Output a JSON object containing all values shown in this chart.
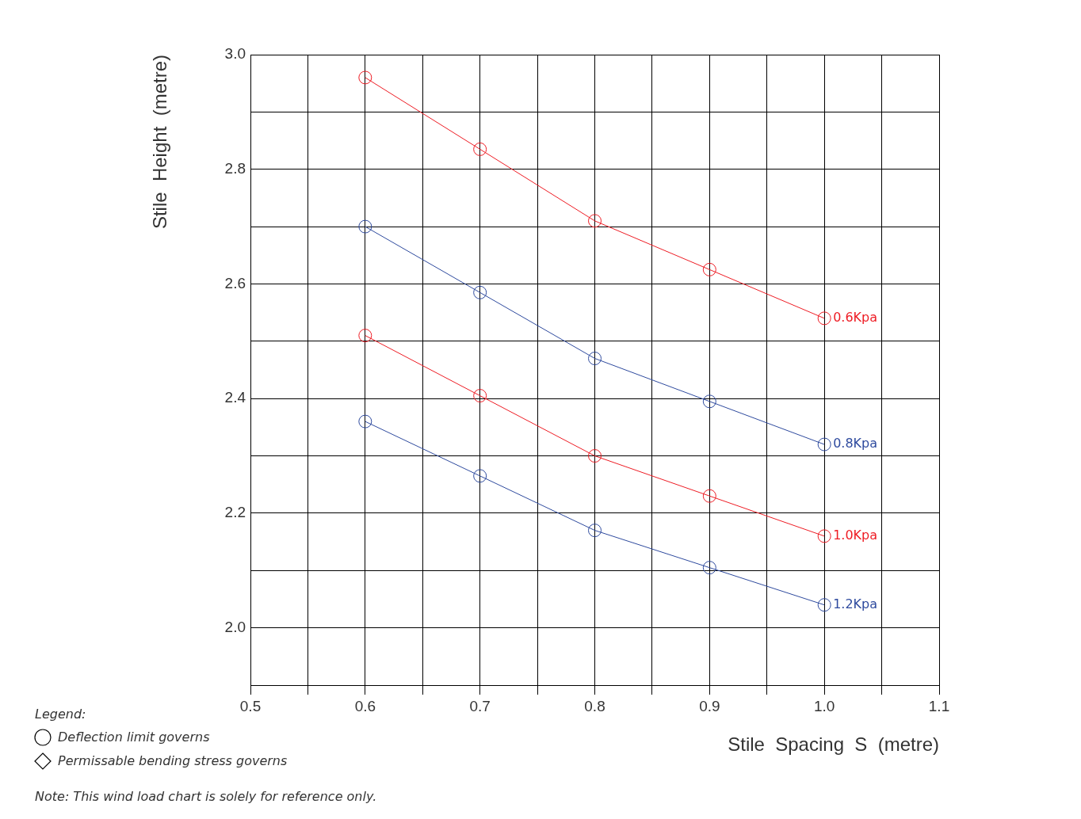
{
  "chart_data": {
    "type": "line",
    "xlabel": "Stile  Spacing  S  (metre)",
    "ylabel": "Stile  Height  (metre)",
    "x": [
      0.6,
      0.7,
      0.8,
      0.9,
      1.0
    ],
    "series": [
      {
        "name": "0.6Kpa",
        "color": "#ee1c24",
        "values": [
          2.96,
          2.835,
          2.71,
          2.625,
          2.54
        ]
      },
      {
        "name": "0.8Kpa",
        "color": "#2e4a9e",
        "values": [
          2.7,
          2.585,
          2.47,
          2.395,
          2.32
        ]
      },
      {
        "name": "1.0Kpa",
        "color": "#ee1c24",
        "values": [
          2.51,
          2.405,
          2.3,
          2.23,
          2.16
        ]
      },
      {
        "name": "1.2Kpa",
        "color": "#2e4a9e",
        "values": [
          2.36,
          2.265,
          2.17,
          2.105,
          2.04
        ]
      }
    ],
    "xlim": [
      0.5,
      1.1
    ],
    "xticks": [
      0.5,
      {
        "value": 0.55,
        "label": null
      },
      0.6,
      {
        "value": 0.65,
        "label": null
      },
      0.7,
      {
        "value": 0.75,
        "label": null
      },
      0.8,
      {
        "value": 0.85,
        "label": null
      },
      0.9,
      {
        "value": 0.95,
        "label": null
      },
      {
        "value": 1.0,
        "label": "1.0"
      },
      {
        "value": 1.05,
        "label": null
      },
      1.1
    ],
    "ylim": [
      1.9,
      3.0
    ],
    "yticks": [
      {
        "value": 1.9,
        "label": null
      },
      {
        "value": 2.0,
        "label": "2.0"
      },
      {
        "value": 2.1,
        "label": null
      },
      2.2,
      {
        "value": 2.3,
        "label": null
      },
      2.4,
      {
        "value": 2.5,
        "label": null
      },
      2.6,
      {
        "value": 2.7,
        "label": null
      },
      2.8,
      {
        "value": 2.9,
        "label": null
      },
      {
        "value": 3.0,
        "label": "3.0"
      }
    ],
    "grid": true,
    "legend": false,
    "marker": "circle",
    "line_style": "solid",
    "annotations": [
      "Legend:",
      "Deflection limit governs",
      "Permissable bending stress governs",
      "Note: This wind load chart is solely for reference only."
    ]
  }
}
